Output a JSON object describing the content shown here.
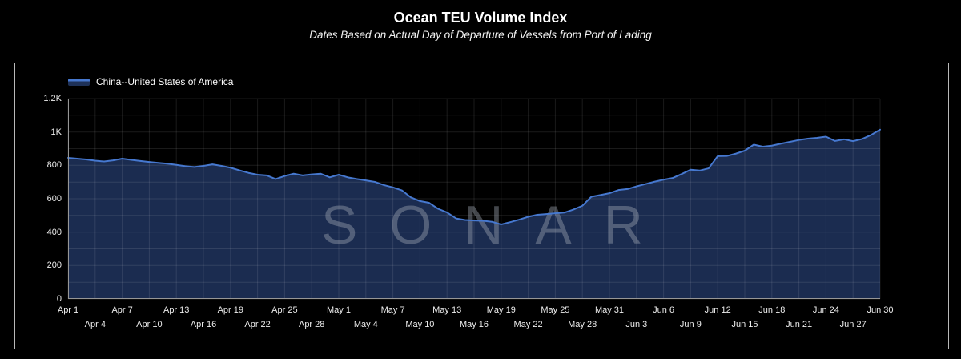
{
  "header": {
    "title": "Ocean TEU Volume Index",
    "subtitle": "Dates Based on Actual Day of Departure of Vessels from Port of Lading"
  },
  "legend": {
    "label": "China--United States of America",
    "line_color": "#4678cf",
    "fill_color": "#1b2c50"
  },
  "watermark": "SONAR",
  "colors": {
    "background": "#000000",
    "panel_border": "#b9b9b9",
    "grid": "rgba(255,255,255,0.10)",
    "axis_line": "#969696",
    "tick_text": "#ededed",
    "series_line": "#4678cf",
    "series_fill": "#1b2c50"
  },
  "chart_data": {
    "type": "area",
    "title": "Ocean TEU Volume Index",
    "subtitle": "Dates Based on Actual Day of Departure of Vessels from Port of Lading",
    "xlabel": "",
    "ylabel": "",
    "ylim": [
      0,
      1200
    ],
    "y_grid_step": 100,
    "x_grid_step_days": 3,
    "grid": true,
    "legend_position": "top-left",
    "ytick_values": [
      0,
      200,
      400,
      600,
      800,
      1000,
      1200
    ],
    "ytick_labels": [
      "0",
      "200",
      "400",
      "600",
      "800",
      "1K",
      "1.2K"
    ],
    "xtick_labels": [
      "Apr 1",
      "Apr 4",
      "Apr 7",
      "Apr 10",
      "Apr 13",
      "Apr 16",
      "Apr 19",
      "Apr 22",
      "Apr 25",
      "Apr 28",
      "May 1",
      "May 4",
      "May 7",
      "May 10",
      "May 13",
      "May 16",
      "May 19",
      "May 22",
      "May 25",
      "May 28",
      "May 31",
      "Jun 3",
      "Jun 6",
      "Jun 9",
      "Jun 12",
      "Jun 15",
      "Jun 18",
      "Jun 21",
      "Jun 24",
      "Jun 27",
      "Jun 30"
    ],
    "x": [
      "Apr 1",
      "Apr 2",
      "Apr 3",
      "Apr 4",
      "Apr 5",
      "Apr 6",
      "Apr 7",
      "Apr 8",
      "Apr 9",
      "Apr 10",
      "Apr 11",
      "Apr 12",
      "Apr 13",
      "Apr 14",
      "Apr 15",
      "Apr 16",
      "Apr 17",
      "Apr 18",
      "Apr 19",
      "Apr 20",
      "Apr 21",
      "Apr 22",
      "Apr 23",
      "Apr 24",
      "Apr 25",
      "Apr 26",
      "Apr 27",
      "Apr 28",
      "Apr 29",
      "Apr 30",
      "May 1",
      "May 2",
      "May 3",
      "May 4",
      "May 5",
      "May 6",
      "May 7",
      "May 8",
      "May 9",
      "May 10",
      "May 11",
      "May 12",
      "May 13",
      "May 14",
      "May 15",
      "May 16",
      "May 17",
      "May 18",
      "May 19",
      "May 20",
      "May 21",
      "May 22",
      "May 23",
      "May 24",
      "May 25",
      "May 26",
      "May 27",
      "May 28",
      "May 29",
      "May 30",
      "May 31",
      "Jun 1",
      "Jun 2",
      "Jun 3",
      "Jun 4",
      "Jun 5",
      "Jun 6",
      "Jun 7",
      "Jun 8",
      "Jun 9",
      "Jun 10",
      "Jun 11",
      "Jun 12",
      "Jun 13",
      "Jun 14",
      "Jun 15",
      "Jun 16",
      "Jun 17",
      "Jun 18",
      "Jun 19",
      "Jun 20",
      "Jun 21",
      "Jun 22",
      "Jun 23",
      "Jun 24",
      "Jun 25",
      "Jun 26",
      "Jun 27",
      "Jun 28",
      "Jun 29",
      "Jun 30"
    ],
    "series": [
      {
        "name": "China--United States of America",
        "values": [
          845,
          840,
          835,
          828,
          823,
          830,
          840,
          833,
          826,
          820,
          815,
          810,
          803,
          795,
          790,
          797,
          806,
          797,
          786,
          770,
          755,
          744,
          740,
          718,
          736,
          750,
          740,
          746,
          750,
          728,
          744,
          728,
          718,
          710,
          701,
          682,
          668,
          650,
          608,
          586,
          576,
          540,
          518,
          482,
          473,
          470,
          468,
          462,
          446,
          460,
          475,
          492,
          504,
          508,
          513,
          517,
          535,
          558,
          612,
          622,
          633,
          652,
          658,
          674,
          688,
          702,
          714,
          724,
          748,
          774,
          769,
          782,
          855,
          856,
          870,
          888,
          924,
          912,
          918,
          930,
          941,
          952,
          960,
          965,
          972,
          946,
          956,
          945,
          958,
          982,
          1014
        ]
      }
    ]
  }
}
